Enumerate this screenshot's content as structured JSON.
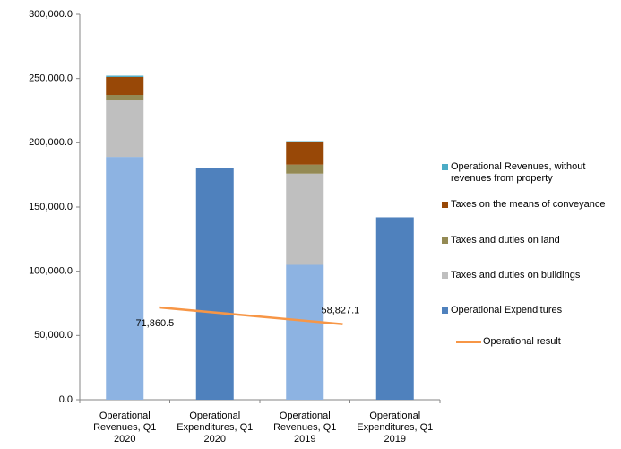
{
  "chart_data": {
    "type": "bar",
    "categories": [
      "Operational Revenues, Q1 2020",
      "Operational Expenditures, Q1 2020",
      "Operational Revenues, Q1 2019",
      "Operational Expenditures, Q1 2019"
    ],
    "series": [
      {
        "name": "Operational Expenditures",
        "color": "#4f81bd",
        "values": [
          null,
          180000,
          null,
          142000
        ]
      },
      {
        "name": null,
        "color": "#8db3e2",
        "values": [
          189000,
          null,
          105000,
          null
        ]
      },
      {
        "name": "Taxes and duties on buildings",
        "color": "#bfbfbf",
        "values": [
          44000,
          null,
          71000,
          null
        ]
      },
      {
        "name": "Taxes and duties on land",
        "color": "#948a54",
        "values": [
          4200,
          null,
          7000,
          null
        ]
      },
      {
        "name": "Taxes on the means of conveyance",
        "color": "#984807",
        "values": [
          14000,
          null,
          18000,
          null
        ]
      },
      {
        "name": "Operational Revenues, without revenues from property",
        "color": "#4bacc6",
        "values": [
          1000,
          null,
          300,
          null
        ]
      }
    ],
    "line": {
      "name": "Operational result",
      "color": "#f79646",
      "values": [
        71860.5,
        58827.1
      ],
      "value_labels": [
        "71,860.5",
        "58,827.1"
      ]
    },
    "ylim": [
      0,
      300000
    ],
    "yticks": [
      {
        "value": 0,
        "label": "0.0"
      },
      {
        "value": 50000,
        "label": "50,000.0"
      },
      {
        "value": 100000,
        "label": "100,000.0"
      },
      {
        "value": 150000,
        "label": "150,000.0"
      },
      {
        "value": 200000,
        "label": "200,000.0"
      },
      {
        "value": 250000,
        "label": "250,000.0"
      },
      {
        "value": 300000,
        "label": "300,000.0"
      }
    ]
  }
}
